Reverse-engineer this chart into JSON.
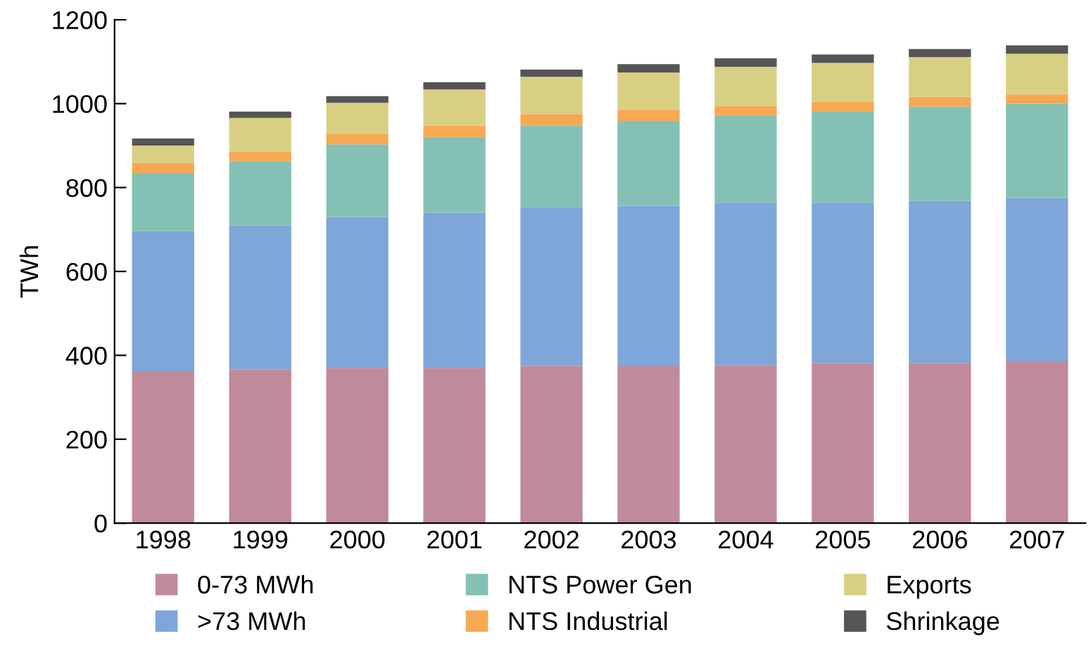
{
  "chart_data": {
    "type": "bar",
    "stacked": true,
    "ylabel": "TWh",
    "categories": [
      "1998",
      "1999",
      "2000",
      "2001",
      "2002",
      "2003",
      "2004",
      "2005",
      "2006",
      "2007"
    ],
    "ylim": [
      0,
      1200
    ],
    "yticks": [
      0,
      200,
      400,
      600,
      800,
      1000,
      1200
    ],
    "grid": false,
    "legend": "bottom",
    "series": [
      {
        "name": "0-73 MWh",
        "color": "#c08a9b",
        "values": [
          362,
          367,
          370,
          370,
          375,
          374,
          377,
          382,
          382,
          384
        ]
      },
      {
        "name": ">73 MWh",
        "color": "#7ea6d8",
        "values": [
          334,
          343,
          360,
          370,
          376,
          383,
          387,
          382,
          386,
          391
        ]
      },
      {
        "name": "NTS Power Gen",
        "color": "#84c1b4",
        "values": [
          139,
          153,
          173,
          180,
          197,
          202,
          208,
          218,
          225,
          225
        ]
      },
      {
        "name": "NTS Industrial",
        "color": "#f7a852",
        "values": [
          24,
          23,
          24,
          28,
          27,
          26,
          23,
          23,
          23,
          22
        ]
      },
      {
        "name": "Exports",
        "color": "#d7d083",
        "values": [
          41,
          80,
          75,
          86,
          89,
          89,
          93,
          92,
          95,
          97
        ]
      },
      {
        "name": "Shrinkage",
        "color": "#555555",
        "values": [
          17,
          15,
          16,
          17,
          17,
          20,
          20,
          20,
          19,
          20
        ]
      }
    ]
  }
}
